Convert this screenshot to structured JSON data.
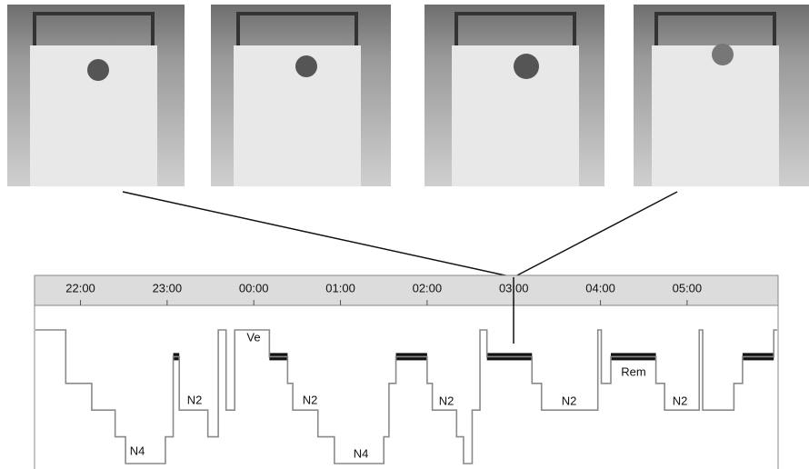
{
  "chart_data": {
    "type": "hypnogram",
    "x": [
      21.48,
      21.83,
      22.13,
      22.4,
      22.52,
      22.98,
      23.07,
      23.14,
      23.47,
      23.59,
      23.68,
      23.78,
      24.18,
      24.39,
      24.45,
      24.74,
      24.93,
      25.5,
      25.56,
      25.64,
      26.0,
      26.06,
      26.34,
      26.42,
      26.52,
      26.61,
      26.69,
      27.21,
      27.32,
      27.97,
      28.01,
      28.12,
      28.64,
      28.74,
      29.14,
      29.18,
      29.54,
      29.64,
      30.0,
      30.04
    ],
    "values": [
      0,
      2,
      3,
      4,
      5,
      4,
      1,
      3,
      4,
      0,
      3,
      0,
      1,
      2,
      3,
      4,
      5,
      4,
      2,
      1,
      2,
      3,
      4,
      5,
      3,
      0,
      1,
      2,
      3,
      0,
      2,
      1,
      2,
      3,
      0,
      3,
      2,
      1,
      0,
      0
    ],
    "color": "#8a8a8a",
    "rem_color": "#111111",
    "xlim": [
      21.47,
      30.05
    ],
    "ylim": [
      -0.3,
      5.2
    ],
    "xticks": [
      {
        "value": 22,
        "label": "22:00"
      },
      {
        "value": 23,
        "label": "23:00"
      },
      {
        "value": 24,
        "label": "00:00"
      },
      {
        "value": 25,
        "label": "01:00"
      },
      {
        "value": 26,
        "label": "02:00"
      },
      {
        "value": 27,
        "label": "03:00"
      },
      {
        "value": 28,
        "label": "04:00"
      },
      {
        "value": 29,
        "label": "05:00"
      }
    ],
    "annotations": [
      "N4",
      "N2",
      "Ve",
      "N2",
      "N4",
      "N2",
      "N2",
      "Rem",
      "N2"
    ]
  }
}
